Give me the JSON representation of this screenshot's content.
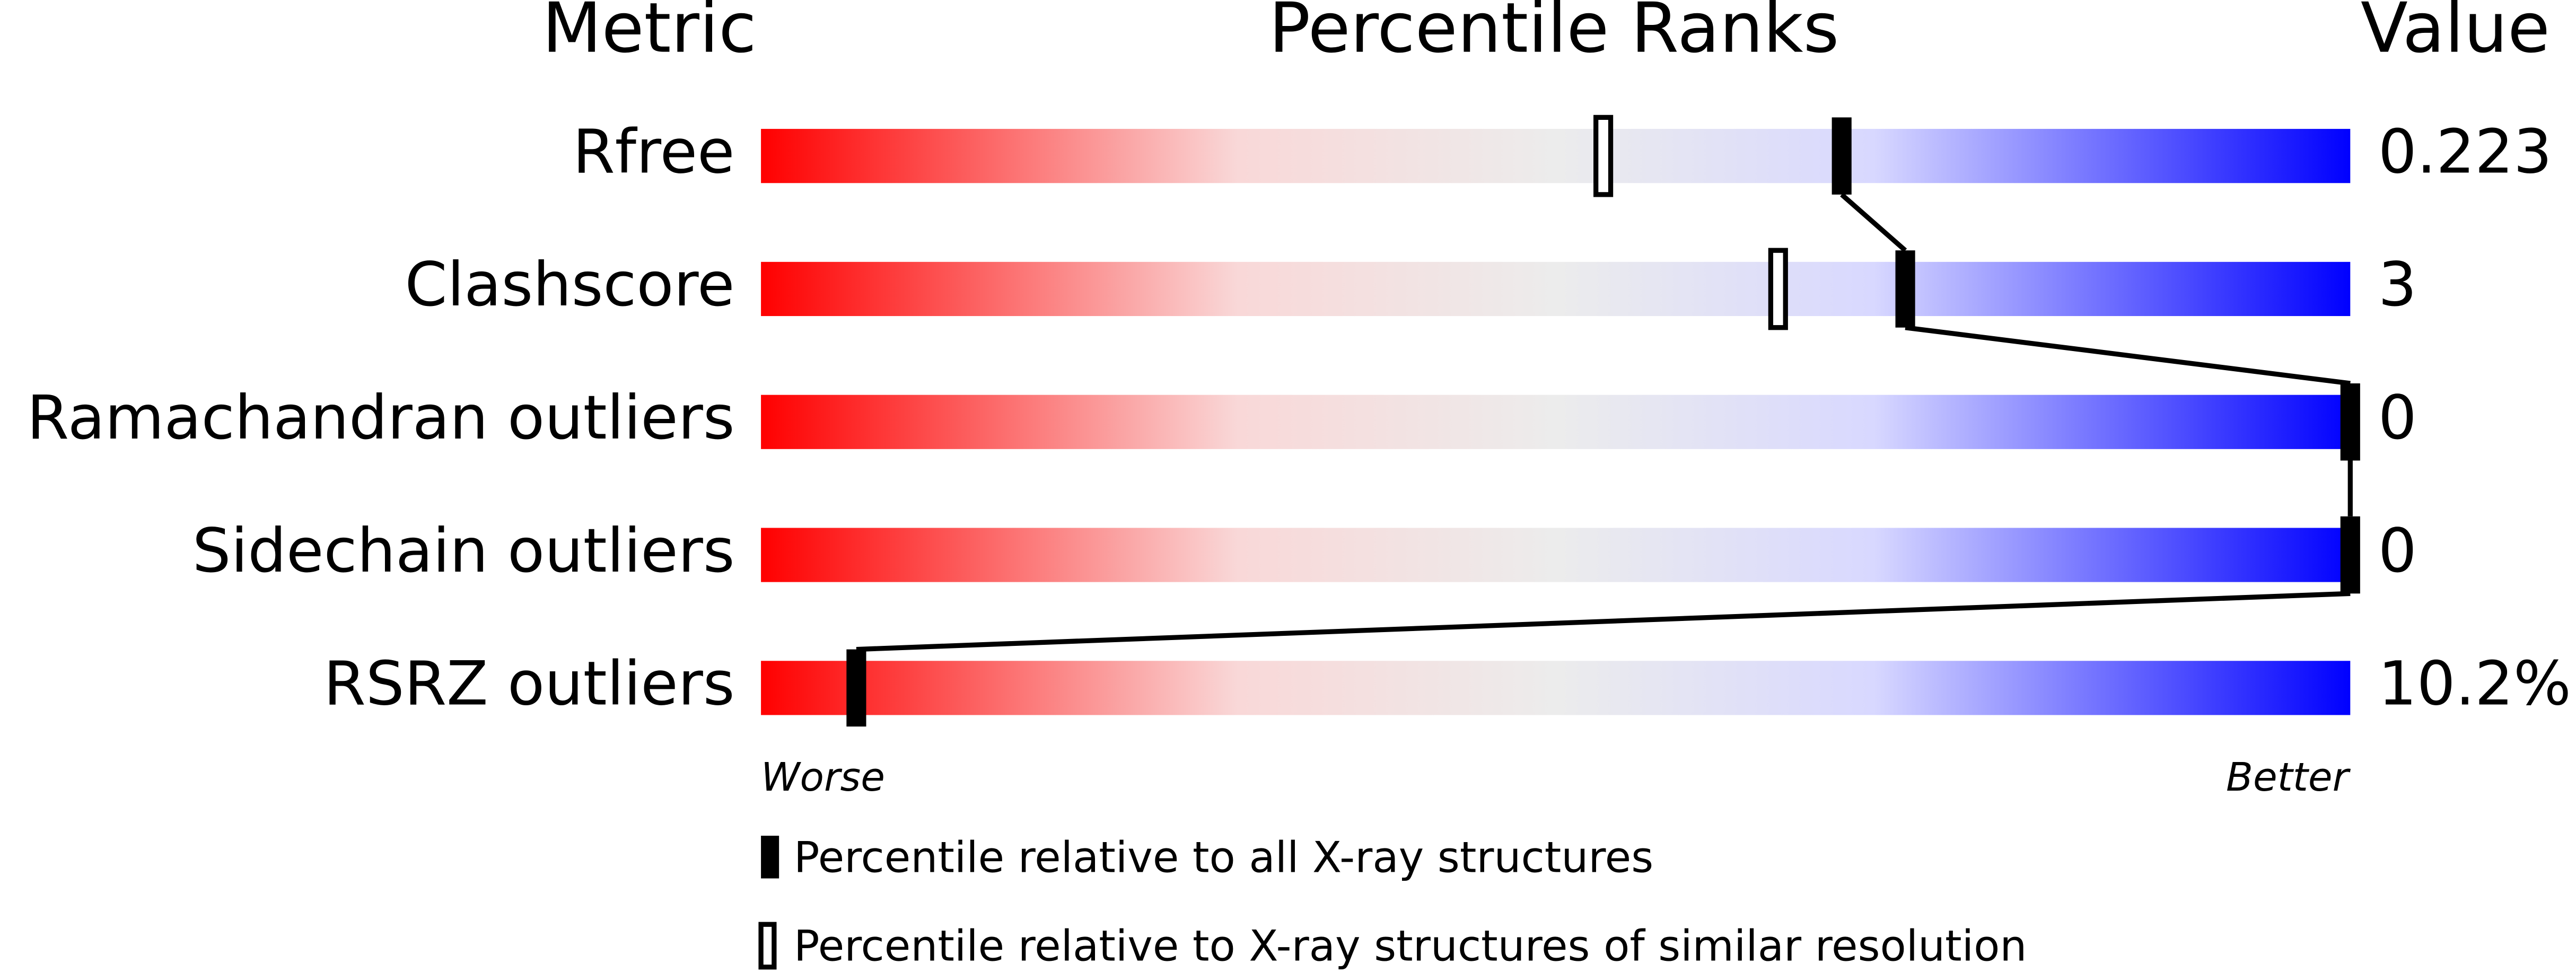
{
  "chart_data": {
    "type": "percentile",
    "headers": {
      "metric": "Metric",
      "ranks": "Percentile Ranks",
      "value": "Value"
    },
    "categories": [
      "Rfree",
      "Clashscore",
      "Ramachandran outliers",
      "Sidechain outliers",
      "RSRZ outliers"
    ],
    "value_column": [
      "0.223",
      "3",
      "0",
      "0",
      "10.2%"
    ],
    "xlim": [
      0,
      100
    ],
    "x_low_label": "Worse",
    "x_high_label": "Better",
    "series": [
      {
        "name": "Percentile relative to all X-ray structures",
        "style": "filled",
        "color": "#000000",
        "values": [
          68,
          72,
          100,
          100,
          6
        ]
      },
      {
        "name": "Percentile relative to X-ray structures of similar resolution",
        "style": "open",
        "color": "#000000",
        "values": [
          53,
          64,
          null,
          null,
          null
        ]
      }
    ]
  }
}
